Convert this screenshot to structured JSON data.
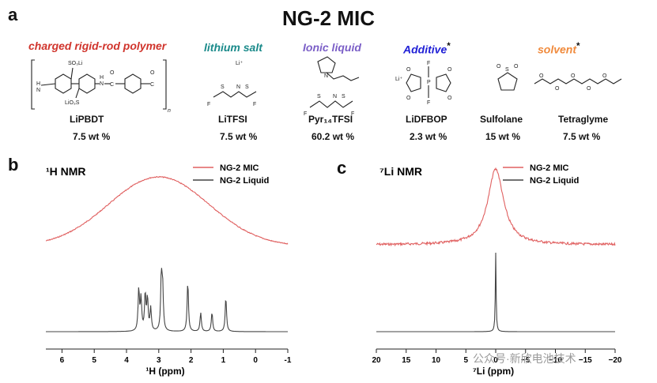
{
  "panel_a": {
    "letter": "a",
    "title": "NG-2 MIC",
    "components": [
      {
        "category": "charged rigid-rod polymer",
        "category_color": "#d0342c",
        "name": "LiPBDT",
        "wt": "7.5 wt %",
        "asterisk": ""
      },
      {
        "category": "lithium salt",
        "category_color": "#1a8a8a",
        "name": "LiTFSI",
        "wt": "7.5 wt %",
        "asterisk": ""
      },
      {
        "category": "Ionic liquid",
        "category_color": "#7b5fc7",
        "name": "Pyr₁₄TFSI",
        "wt": "60.2 wt %",
        "asterisk": ""
      },
      {
        "category": "Additive",
        "category_color": "#1f1fd6",
        "name": "LiDFBOP",
        "wt": "2.3 wt %",
        "asterisk": "*"
      },
      {
        "category": "",
        "category_color": "#111111",
        "name": "Sulfolane",
        "wt": "15 wt %",
        "asterisk": ""
      },
      {
        "category": "solvent",
        "category_color": "#f08a3c",
        "name": "Tetraglyme",
        "wt": "7.5 wt %",
        "asterisk": "*"
      }
    ],
    "struct_labels": {
      "so3li": "SO₃Li",
      "lio3s": "LiO₃S",
      "n": "n",
      "li_plus": "Li⁺",
      "lidfbop_li": "Li⁺",
      "f": "F",
      "o": "O",
      "s": "S",
      "p": "P",
      "n_label": "N",
      "h": "H",
      "c": "C"
    }
  },
  "chart_data": [
    {
      "type": "line",
      "panel": "b",
      "title": "¹H NMR",
      "xlabel": "¹H (ppm)",
      "ylabel": "",
      "xlim": [
        6.5,
        -1
      ],
      "xticks": [
        6,
        5,
        4,
        3,
        2,
        1,
        0,
        -1
      ],
      "legend_position": "top-right",
      "series": [
        {
          "name": "NG-2 MIC",
          "color": "#e06060",
          "kind": "broad",
          "center": 3.0,
          "width": 2.2
        },
        {
          "name": "NG-2 Liquid",
          "color": "#444444",
          "kind": "peaks",
          "peaks": [
            [
              3.62,
              0.55
            ],
            [
              3.55,
              0.42
            ],
            [
              3.42,
              0.48
            ],
            [
              3.35,
              0.42
            ],
            [
              3.25,
              0.3
            ],
            [
              2.92,
              0.7
            ],
            [
              2.88,
              0.55
            ],
            [
              2.1,
              0.65
            ],
            [
              1.7,
              0.25
            ],
            [
              1.35,
              0.25
            ],
            [
              0.92,
              0.45
            ]
          ]
        }
      ]
    },
    {
      "type": "line",
      "panel": "c",
      "title": "⁷Li NMR",
      "xlabel": "⁷Li (ppm)",
      "ylabel": "",
      "xlim": [
        20,
        -20
      ],
      "xticks": [
        20,
        15,
        10,
        5,
        0,
        -5,
        -10,
        -15,
        -20
      ],
      "xtick_labels": [
        "20",
        "15",
        "10",
        "5",
        "0",
        "−5",
        "−10",
        "−15",
        "−20"
      ],
      "legend_position": "top-right",
      "series": [
        {
          "name": "NG-2 MIC",
          "color": "#e06060",
          "kind": "lorentz",
          "center": 0,
          "width": 1.6
        },
        {
          "name": "NG-2 Liquid",
          "color": "#444444",
          "kind": "spike",
          "center": 0
        }
      ]
    }
  ],
  "watermark": "公众号·新欣电池技术"
}
